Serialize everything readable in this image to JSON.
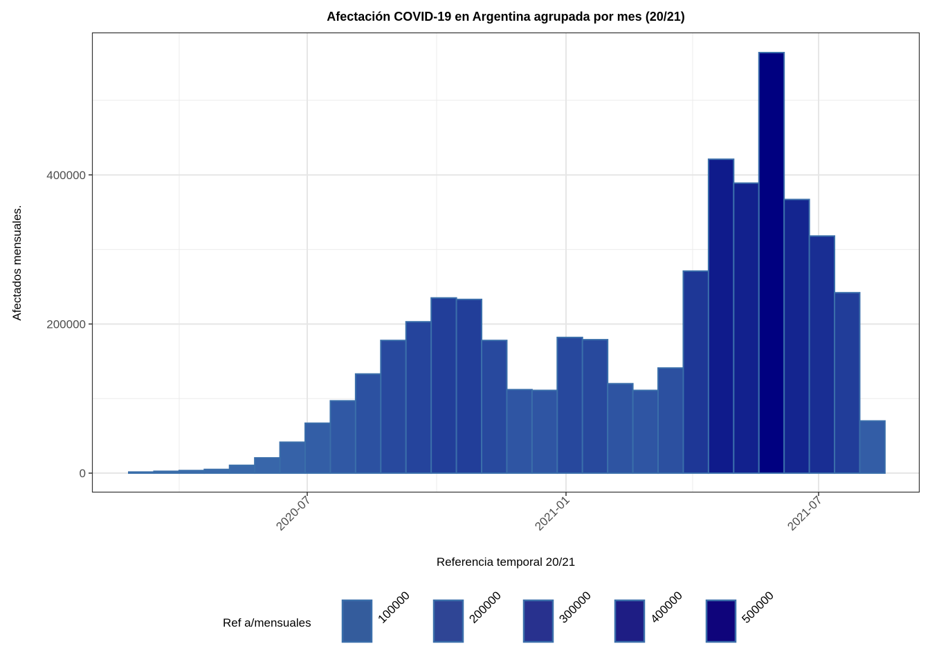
{
  "chart_data": {
    "type": "bar",
    "title": "Afectación COVID-19 en Argentina agrupada por mes (20/21)",
    "xlabel": "Referencia temporal 20/21",
    "ylabel": "Afectados mensuales.",
    "x_ticks": [
      "2020-07",
      "2021-01",
      "2021-07"
    ],
    "y_ticks": [
      0,
      200000,
      400000
    ],
    "ylim": [
      -25000,
      590000
    ],
    "grid": true,
    "bins": "semi-monthly",
    "x_range": [
      "2020-03",
      "2021-08"
    ],
    "values": [
      1500,
      2500,
      3500,
      5000,
      10500,
      20500,
      41500,
      67000,
      97000,
      133000,
      178000,
      203000,
      235000,
      233000,
      178000,
      112000,
      111000,
      182000,
      179000,
      120000,
      111000,
      141000,
      271000,
      421000,
      389000,
      564000,
      367000,
      318000,
      242000,
      70000
    ],
    "legend": {
      "title": "Ref a/mensuales",
      "position": "bottom",
      "entries": [
        "100000",
        "200000",
        "300000",
        "400000",
        "500000"
      ],
      "colors": [
        "#345c9c",
        "#2f4595",
        "#28318e",
        "#1e1d84",
        "#0f047b"
      ]
    },
    "fill_gradient": {
      "low": "#3a6aab",
      "high": "#000080"
    },
    "bar_border_color": "#3a6eaa"
  }
}
